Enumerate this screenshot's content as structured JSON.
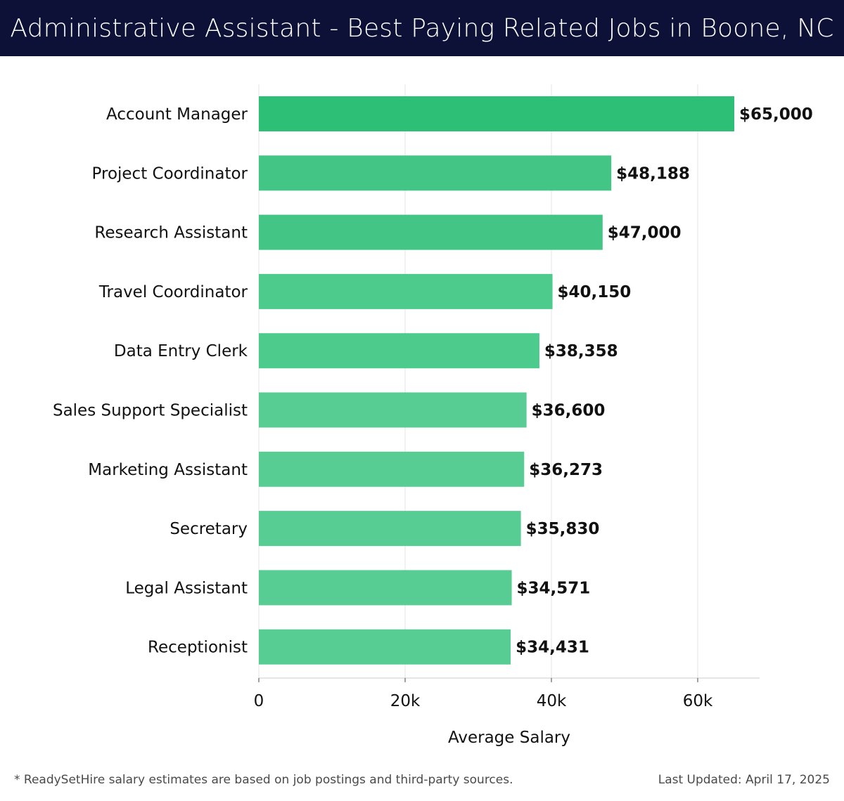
{
  "header": {
    "title": "Administrative Assistant - Best Paying Related Jobs in Boone, NC"
  },
  "chart_data": {
    "type": "bar",
    "orientation": "horizontal",
    "title": "Administrative Assistant - Best Paying Related Jobs in Boone, NC",
    "xlabel": "Average Salary",
    "ylabel": "",
    "xlim": [
      0,
      68500
    ],
    "xticks": [
      0,
      20000,
      40000,
      60000
    ],
    "xtick_labels": [
      "0",
      "20k",
      "40k",
      "60k"
    ],
    "grid": true,
    "categories": [
      "Account Manager",
      "Project Coordinator",
      "Research Assistant",
      "Travel Coordinator",
      "Data Entry Clerk",
      "Sales Support Specialist",
      "Marketing Assistant",
      "Secretary",
      "Legal Assistant",
      "Receptionist"
    ],
    "values": [
      65000,
      48188,
      47000,
      40150,
      38358,
      36600,
      36273,
      35830,
      34571,
      34431
    ],
    "value_labels": [
      "$65,000",
      "$48,188",
      "$47,000",
      "$40,150",
      "$38,358",
      "$36,600",
      "$36,273",
      "$35,830",
      "$34,571",
      "$34,431"
    ],
    "colors": {
      "bar_top": "#2dbf76",
      "bar_high": "#42c585",
      "bar_mid": "#4ccb8c",
      "bar_low": "#57cd93",
      "grid": "#e4e4e4",
      "axis": "#cccccc"
    }
  },
  "footer": {
    "note": "* ReadySetHire salary estimates are based on job postings and third-party sources.",
    "updated": "Last Updated: April 17, 2025"
  }
}
